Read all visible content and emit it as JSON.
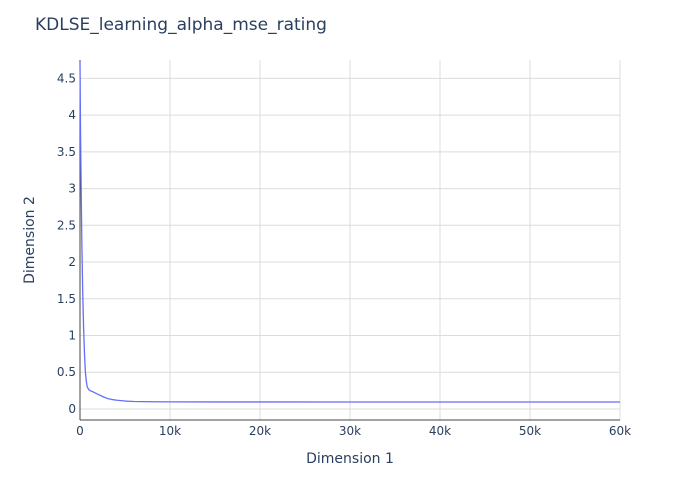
{
  "chart_data": {
    "type": "line",
    "title": "KDLSE_learning_alpha_mse_rating",
    "xlabel": "Dimension 1",
    "ylabel": "Dimension 2",
    "xlim": [
      0,
      60000
    ],
    "ylim": [
      -0.15,
      4.75
    ],
    "grid": true,
    "x_ticks": [
      {
        "value": 0,
        "label": "0"
      },
      {
        "value": 10000,
        "label": "10k"
      },
      {
        "value": 20000,
        "label": "20k"
      },
      {
        "value": 30000,
        "label": "30k"
      },
      {
        "value": 40000,
        "label": "40k"
      },
      {
        "value": 50000,
        "label": "50k"
      },
      {
        "value": 60000,
        "label": "60k"
      }
    ],
    "y_ticks": [
      {
        "value": 0,
        "label": "0"
      },
      {
        "value": 0.5,
        "label": "0.5"
      },
      {
        "value": 1,
        "label": "1"
      },
      {
        "value": 1.5,
        "label": "1.5"
      },
      {
        "value": 2,
        "label": "2"
      },
      {
        "value": 2.5,
        "label": "2.5"
      },
      {
        "value": 3,
        "label": "3"
      },
      {
        "value": 3.5,
        "label": "3.5"
      },
      {
        "value": 4,
        "label": "4"
      },
      {
        "value": 4.5,
        "label": "4.5"
      }
    ],
    "series": [
      {
        "color": "#636efa",
        "x": [
          0,
          50,
          100,
          200,
          300,
          400,
          500,
          600,
          700,
          800,
          1000,
          1200,
          1500,
          2000,
          2500,
          3000,
          3500,
          4000,
          5000,
          6000,
          7000,
          8000,
          10000,
          15000,
          20000,
          30000,
          40000,
          50000,
          60000
        ],
        "y": [
          4.72,
          3.9,
          3.3,
          2.3,
          1.6,
          1.1,
          0.75,
          0.5,
          0.38,
          0.3,
          0.26,
          0.245,
          0.23,
          0.2,
          0.17,
          0.145,
          0.13,
          0.12,
          0.108,
          0.102,
          0.1,
          0.098,
          0.097,
          0.096,
          0.096,
          0.095,
          0.095,
          0.095,
          0.095
        ]
      }
    ]
  }
}
